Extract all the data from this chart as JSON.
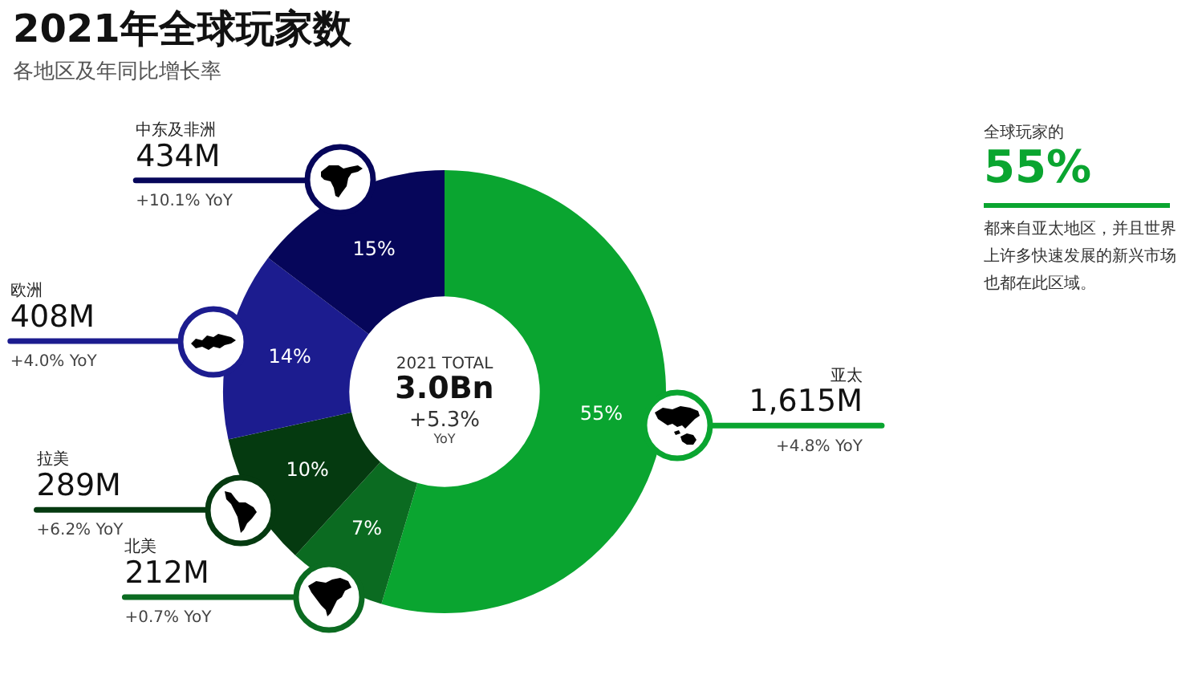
{
  "chart_data": {
    "type": "donut",
    "title": "2021年全球玩家数",
    "subtitle": "各地区及年同比增长率",
    "categories": [
      "亚太",
      "北美",
      "拉美",
      "欧洲",
      "中东及非洲"
    ],
    "values": [
      1615,
      212,
      289,
      408,
      434
    ],
    "colors": [
      "#0aa530",
      "#0b6b21",
      "#053a10",
      "#1c1c8f",
      "#06065a"
    ],
    "value_labels": [
      "1,615M",
      "212M",
      "289M",
      "408M",
      "434M"
    ],
    "annotations": [
      {
        "text": "55%",
        "x": "亚太"
      },
      {
        "text": "+4.8% YoY",
        "x": "亚太"
      },
      {
        "text": "7%",
        "x": "北美"
      },
      {
        "text": "+0.7% YoY",
        "x": "北美"
      },
      {
        "text": "10%",
        "x": "拉美"
      },
      {
        "text": "+6.2% YoY",
        "x": "拉美"
      },
      {
        "text": "14%",
        "x": "欧洲"
      },
      {
        "text": "+4.0% YoY",
        "x": "欧洲"
      },
      {
        "text": "15%",
        "x": "中东及非洲"
      },
      {
        "text": "+10.1% YoY",
        "x": "中东及非洲"
      },
      "2021 TOTAL",
      "3.0Bn",
      "+5.3%",
      "YoY",
      "全球玩家的",
      "55%",
      "都来自亚太地区，并且世界上许多快速发展的新兴市场也都在此区域。"
    ]
  }
}
